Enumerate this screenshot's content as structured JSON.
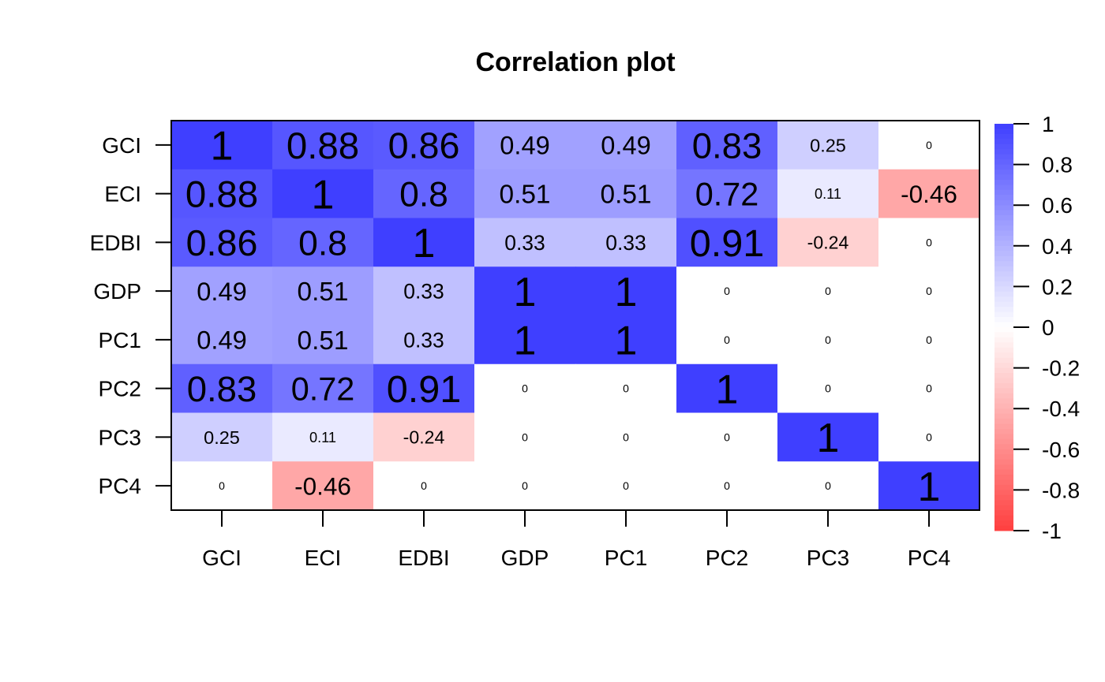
{
  "chart_data": {
    "type": "heatmap",
    "title": "Correlation plot",
    "xlabel": "",
    "ylabel": "",
    "variables": [
      "GCI",
      "ECI",
      "EDBI",
      "GDP",
      "PC1",
      "PC2",
      "PC3",
      "PC4"
    ],
    "matrix": [
      [
        1,
        0.88,
        0.86,
        0.49,
        0.49,
        0.83,
        0.25,
        0
      ],
      [
        0.88,
        1,
        0.8,
        0.51,
        0.51,
        0.72,
        0.11,
        -0.46
      ],
      [
        0.86,
        0.8,
        1,
        0.33,
        0.33,
        0.91,
        -0.24,
        0
      ],
      [
        0.49,
        0.51,
        0.33,
        1,
        1,
        0,
        0,
        0
      ],
      [
        0.49,
        0.51,
        0.33,
        1,
        1,
        0,
        0,
        0
      ],
      [
        0.83,
        0.72,
        0.91,
        0,
        0,
        1,
        0,
        0
      ],
      [
        0.25,
        0.11,
        -0.24,
        0,
        0,
        0,
        1,
        0
      ],
      [
        0,
        -0.46,
        0,
        0,
        0,
        0,
        0,
        1
      ]
    ],
    "color_range": [
      -1,
      1
    ],
    "colorbar_ticks": [
      "1",
      "0.8",
      "0.6",
      "0.4",
      "0.2",
      "0",
      "-0.2",
      "-0.4",
      "-0.6",
      "-0.8",
      "-1"
    ],
    "positive_color": "#3f3fff",
    "negative_color": "#ff3f3f",
    "zero_color": "#ffffff",
    "legend_position": "right"
  }
}
